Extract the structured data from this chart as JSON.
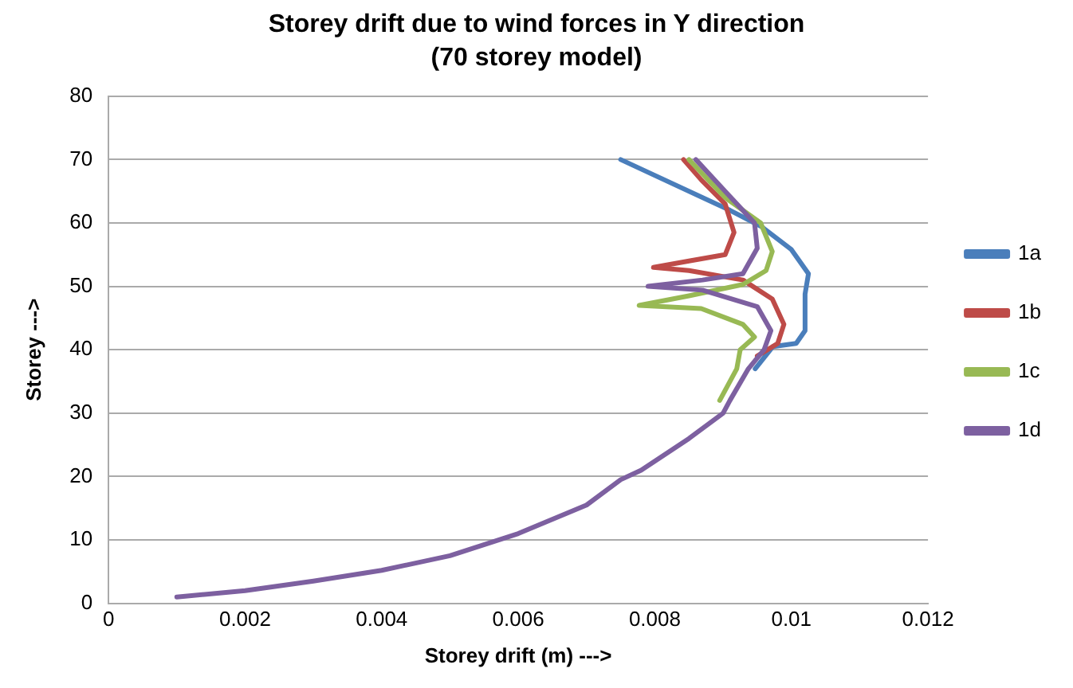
{
  "chart_data": {
    "type": "line",
    "title": "Storey drift due to wind forces in Y direction",
    "subtitle": "(70 storey model)",
    "xlabel": "Storey drift (m) --->",
    "ylabel": "Storey --->",
    "xlim": [
      0,
      0.012
    ],
    "xticks": [
      0,
      0.002,
      0.004,
      0.006,
      0.008,
      0.01,
      0.012
    ],
    "ylim": [
      0,
      80
    ],
    "yticks": [
      0,
      10,
      20,
      30,
      40,
      50,
      60,
      70,
      80
    ],
    "grid": "y",
    "legend": "right",
    "marker": "none",
    "line_style": "solid",
    "series": [
      {
        "name": "1a",
        "color": "#4a7ebb",
        "x": [
          0.00947,
          0.00973,
          0.01007,
          0.0102,
          0.0102,
          0.01025,
          0.01,
          0.00955,
          0.0091,
          0.0075
        ],
        "values": [
          37,
          40.5,
          41,
          43,
          48.8,
          52,
          55.8,
          59.5,
          62,
          70
        ]
      },
      {
        "name": "1b",
        "color": "#be4b48",
        "x": [
          0.0095,
          0.0098,
          0.00989,
          0.00972,
          0.00929,
          0.0085,
          0.00798,
          0.0085,
          0.00903,
          0.00916,
          0.00903,
          0.00868,
          0.00842
        ],
        "values": [
          39,
          41,
          44,
          48,
          51,
          52.5,
          53,
          54,
          55,
          58.5,
          63,
          66.8,
          70
        ]
      },
      {
        "name": "1c",
        "color": "#98b954",
        "x": [
          0.00895,
          0.0092,
          0.00925,
          0.00946,
          0.00929,
          0.00868,
          0.00777,
          0.0085,
          0.00929,
          0.00963,
          0.00972,
          0.00955,
          0.00903,
          0.0085
        ],
        "values": [
          32,
          37,
          40,
          42,
          44,
          46.5,
          47,
          48.5,
          50.3,
          52.5,
          55.5,
          60,
          64,
          70
        ]
      },
      {
        "name": "1d",
        "color": "#7d60a0",
        "x": [
          0.001,
          0.002,
          0.003,
          0.004,
          0.005,
          0.006,
          0.007,
          0.0075,
          0.0078,
          0.0085,
          0.009,
          0.0091,
          0.00937,
          0.0096,
          0.0097,
          0.0095,
          0.0087,
          0.0079,
          0.0087,
          0.00929,
          0.0095,
          0.00946,
          0.00903,
          0.0086
        ],
        "values": [
          1,
          2,
          3.5,
          5.2,
          7.5,
          11,
          15.5,
          19.5,
          21,
          26,
          30,
          32,
          37,
          40,
          43,
          46.8,
          49.4,
          50,
          51,
          52,
          56,
          60,
          65,
          70
        ]
      }
    ]
  }
}
